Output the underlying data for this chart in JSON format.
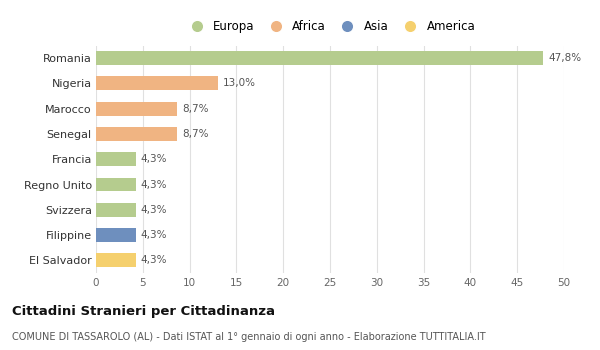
{
  "countries": [
    "Romania",
    "Nigeria",
    "Marocco",
    "Senegal",
    "Francia",
    "Regno Unito",
    "Svizzera",
    "Filippine",
    "El Salvador"
  ],
  "values": [
    47.8,
    13.0,
    8.7,
    8.7,
    4.3,
    4.3,
    4.3,
    4.3,
    4.3
  ],
  "labels": [
    "47,8%",
    "13,0%",
    "8,7%",
    "8,7%",
    "4,3%",
    "4,3%",
    "4,3%",
    "4,3%",
    "4,3%"
  ],
  "colors": [
    "#b5cc8e",
    "#f0b482",
    "#f0b482",
    "#f0b482",
    "#b5cc8e",
    "#b5cc8e",
    "#b5cc8e",
    "#6e8fbe",
    "#f5d06e"
  ],
  "legend_labels": [
    "Europa",
    "Africa",
    "Asia",
    "America"
  ],
  "legend_colors": [
    "#b5cc8e",
    "#f0b482",
    "#6e8fbe",
    "#f5d06e"
  ],
  "title": "Cittadini Stranieri per Cittadinanza",
  "subtitle": "COMUNE DI TASSAROLO (AL) - Dati ISTAT al 1° gennaio di ogni anno - Elaborazione TUTTITALIA.IT",
  "xlim": [
    0,
    50
  ],
  "xticks": [
    0,
    5,
    10,
    15,
    20,
    25,
    30,
    35,
    40,
    45,
    50
  ],
  "background_color": "#ffffff",
  "grid_color": "#e0e0e0",
  "bar_height": 0.55
}
